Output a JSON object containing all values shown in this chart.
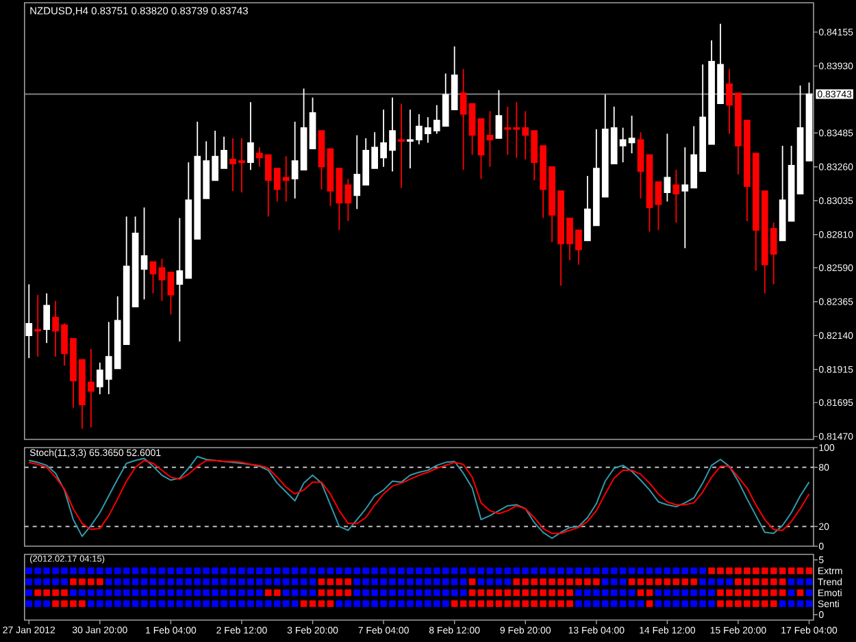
{
  "chart_data": [
    {
      "type": "candlestick",
      "title": "NZDUSD,H4 0.83751 0.83820 0.83739 0.83743",
      "categories": [
        null,
        null,
        null,
        null,
        null,
        null,
        null,
        null,
        null,
        null,
        null,
        null,
        null,
        null,
        null,
        null,
        null,
        null,
        null,
        null,
        null,
        null,
        null,
        null,
        null,
        null,
        null,
        null,
        null,
        null,
        null,
        null,
        null,
        null,
        null,
        null,
        null,
        null,
        null,
        null,
        null,
        null,
        null,
        null,
        null,
        null,
        null,
        null,
        null,
        null,
        null,
        null,
        null,
        null,
        null,
        null,
        null,
        null,
        null,
        null,
        null,
        null,
        null,
        null,
        null,
        null,
        null,
        null,
        null,
        null,
        null,
        null,
        null,
        null,
        null,
        null,
        null,
        null,
        null,
        null,
        null,
        null,
        null,
        null,
        null,
        null,
        null,
        null,
        null
      ],
      "ohlc": [
        [
          0.8214,
          0.8248,
          0.8199,
          0.8222
        ],
        [
          0.8218,
          0.8241,
          0.82,
          0.8217
        ],
        [
          0.8218,
          0.8242,
          0.8209,
          0.8234
        ],
        [
          0.8226,
          0.8237,
          0.82,
          0.8217
        ],
        [
          0.8221,
          0.8222,
          0.8194,
          0.8202
        ],
        [
          0.8212,
          0.8212,
          0.8166,
          0.8184
        ],
        [
          0.8198,
          0.8198,
          0.8152,
          0.8168
        ],
        [
          0.8183,
          0.8205,
          0.8153,
          0.8177
        ],
        [
          0.818,
          0.8196,
          0.8175,
          0.8191
        ],
        [
          0.8185,
          0.8223,
          0.8175,
          0.82
        ],
        [
          0.8192,
          0.824,
          0.8192,
          0.8224
        ],
        [
          0.8208,
          0.8293,
          0.8208,
          0.826
        ],
        [
          0.8233,
          0.8293,
          0.8233,
          0.8282
        ],
        [
          0.8258,
          0.8299,
          0.8238,
          0.8267
        ],
        [
          0.8263,
          0.8263,
          0.8242,
          0.8255
        ],
        [
          0.8259,
          0.8265,
          0.8237,
          0.8251
        ],
        [
          0.8256,
          0.8256,
          0.8228,
          0.8241
        ],
        [
          0.8248,
          0.8292,
          0.821,
          0.8257
        ],
        [
          0.8252,
          0.8329,
          0.8252,
          0.8304
        ],
        [
          0.8278,
          0.8356,
          0.8278,
          0.8333
        ],
        [
          0.8305,
          0.8343,
          0.8305,
          0.833
        ],
        [
          0.8317,
          0.835,
          0.8317,
          0.8333
        ],
        [
          0.8325,
          0.8346,
          0.8325,
          0.8337
        ],
        [
          0.8331,
          0.8345,
          0.831,
          0.8328
        ],
        [
          0.833,
          0.8345,
          0.8309,
          0.8329
        ],
        [
          0.8329,
          0.8369,
          0.8324,
          0.8342
        ],
        [
          0.8335,
          0.8339,
          0.8326,
          0.8332
        ],
        [
          0.8334,
          0.8334,
          0.8293,
          0.8317
        ],
        [
          0.8325,
          0.8325,
          0.8303,
          0.8311
        ],
        [
          0.8319,
          0.8333,
          0.8303,
          0.8317
        ],
        [
          0.8318,
          0.8356,
          0.8305,
          0.833
        ],
        [
          0.8324,
          0.8378,
          0.8324,
          0.8352
        ],
        [
          0.8338,
          0.8372,
          0.8338,
          0.8362
        ],
        [
          0.835,
          0.835,
          0.8311,
          0.8326
        ],
        [
          0.8338,
          0.8338,
          0.83,
          0.831
        ],
        [
          0.8325,
          0.8325,
          0.8284,
          0.8302
        ],
        [
          0.8314,
          0.8318,
          0.829,
          0.8302
        ],
        [
          0.8307,
          0.8347,
          0.8298,
          0.8321
        ],
        [
          0.8314,
          0.8345,
          0.8314,
          0.8337
        ],
        [
          0.8325,
          0.8349,
          0.8325,
          0.8339
        ],
        [
          0.8332,
          0.8364,
          0.8326,
          0.8342
        ],
        [
          0.8337,
          0.8372,
          0.8323,
          0.835
        ],
        [
          0.8344,
          0.8368,
          0.8312,
          0.8343
        ],
        [
          0.8343,
          0.8364,
          0.8325,
          0.8344
        ],
        [
          0.8344,
          0.8361,
          0.8341,
          0.8353
        ],
        [
          0.8348,
          0.8359,
          0.8342,
          0.8352
        ],
        [
          0.835,
          0.8367,
          0.8348,
          0.8357
        ],
        [
          0.8353,
          0.8388,
          0.8353,
          0.8374
        ],
        [
          0.8364,
          0.8406,
          0.8364,
          0.8387
        ],
        [
          0.8375,
          0.8391,
          0.8324,
          0.8361
        ],
        [
          0.8368,
          0.8368,
          0.8334,
          0.8347
        ],
        [
          0.8358,
          0.8358,
          0.8318,
          0.8334
        ],
        [
          0.8347,
          0.8363,
          0.8326,
          0.8344
        ],
        [
          0.8345,
          0.8377,
          0.8345,
          0.836
        ],
        [
          0.8352,
          0.8366,
          0.8334,
          0.8351
        ],
        [
          0.8352,
          0.8369,
          0.8332,
          0.8351
        ],
        [
          0.8352,
          0.8363,
          0.8331,
          0.8347
        ],
        [
          0.835,
          0.835,
          0.8317,
          0.8329
        ],
        [
          0.834,
          0.834,
          0.8292,
          0.8311
        ],
        [
          0.8326,
          0.8326,
          0.8276,
          0.8294
        ],
        [
          0.831,
          0.831,
          0.8247,
          0.8275
        ],
        [
          0.8292,
          0.8292,
          0.8264,
          0.8275
        ],
        [
          0.8284,
          0.8284,
          0.8261,
          0.8271
        ],
        [
          0.8277,
          0.832,
          0.8277,
          0.8298
        ],
        [
          0.8287,
          0.8351,
          0.8287,
          0.8325
        ],
        [
          0.8306,
          0.8374,
          0.8306,
          0.8351
        ],
        [
          0.8328,
          0.8366,
          0.8328,
          0.8352
        ],
        [
          0.834,
          0.8352,
          0.8329,
          0.8344
        ],
        [
          0.8342,
          0.836,
          0.8335,
          0.8345
        ],
        [
          0.8344,
          0.8349,
          0.8305,
          0.8323
        ],
        [
          0.8334,
          0.8334,
          0.8283,
          0.8299
        ],
        [
          0.8316,
          0.8316,
          0.8284,
          0.8301
        ],
        [
          0.8309,
          0.8348,
          0.8303,
          0.8319
        ],
        [
          0.8314,
          0.8324,
          0.8289,
          0.8308
        ],
        [
          0.831,
          0.8339,
          0.8272,
          0.8314
        ],
        [
          0.8312,
          0.8353,
          0.8312,
          0.8334
        ],
        [
          0.8323,
          0.8394,
          0.8323,
          0.8359
        ],
        [
          0.8341,
          0.841,
          0.8341,
          0.8396
        ],
        [
          0.8368,
          0.8421,
          0.8368,
          0.8394
        ],
        [
          0.8381,
          0.8391,
          0.8348,
          0.8367
        ],
        [
          0.8375,
          0.8375,
          0.8321,
          0.834
        ],
        [
          0.8357,
          0.8357,
          0.829,
          0.8313
        ],
        [
          0.8335,
          0.8335,
          0.8257,
          0.8284
        ],
        [
          0.831,
          0.831,
          0.8242,
          0.8261
        ],
        [
          0.8285,
          0.8289,
          0.8248,
          0.8268
        ],
        [
          0.8277,
          0.834,
          0.8277,
          0.8304
        ],
        [
          0.829,
          0.834,
          0.829,
          0.8327
        ],
        [
          0.8308,
          0.838,
          0.8308,
          0.8352
        ],
        [
          0.833,
          0.8382,
          0.833,
          0.83743
        ]
      ],
      "colors": [
        "#ffffff",
        "#ff0000",
        "#ffffff",
        "#ff0000",
        "#ff0000",
        "#ff0000",
        "#ff0000",
        "#ff0000",
        "#ffffff",
        "#ffffff",
        "#ffffff",
        "#ffffff",
        "#ffffff",
        "#ffffff",
        "#ff0000",
        "#ff0000",
        "#ff0000",
        "#ffffff",
        "#ffffff",
        "#ffffff",
        "#ffffff",
        "#ffffff",
        "#ffffff",
        "#ff0000",
        "#ff0000",
        "#ffffff",
        "#ff0000",
        "#ff0000",
        "#ff0000",
        "#ff0000",
        "#ffffff",
        "#ffffff",
        "#ffffff",
        "#ff0000",
        "#ff0000",
        "#ff0000",
        "#ff0000",
        "#ffffff",
        "#ffffff",
        "#ffffff",
        "#ffffff",
        "#ffffff",
        "#ff0000",
        "#ffffff",
        "#ffffff",
        "#ffffff",
        "#ffffff",
        "#ffffff",
        "#ffffff",
        "#ff0000",
        "#ff0000",
        "#ff0000",
        "#ff0000",
        "#ffffff",
        "#ff0000",
        "#ff0000",
        "#ff0000",
        "#ff0000",
        "#ff0000",
        "#ff0000",
        "#ff0000",
        "#ff0000",
        "#ff0000",
        "#ffffff",
        "#ffffff",
        "#ffffff",
        "#ffffff",
        "#ffffff",
        "#ffffff",
        "#ff0000",
        "#ff0000",
        "#ff0000",
        "#ffffff",
        "#ff0000",
        "#ffffff",
        "#ffffff",
        "#ffffff",
        "#ffffff",
        "#ffffff",
        "#ff0000",
        "#ff0000",
        "#ff0000",
        "#ff0000",
        "#ff0000",
        "#ff0000",
        "#ffffff",
        "#ffffff",
        "#ffffff",
        "#ffffff"
      ],
      "ylim": [
        0.8145,
        0.8435
      ],
      "yticks": [
        0.84155,
        {
          "value": 0.8393,
          "label": "0.83930"
        },
        0.83485,
        {
          "value": 0.8326,
          "label": "0.83260"
        },
        0.83035,
        {
          "value": 0.8281,
          "label": "0.82810"
        },
        {
          "value": 0.8259,
          "label": "0.82590"
        },
        0.82365,
        {
          "value": 0.8214,
          "label": "0.82140"
        },
        0.81915,
        0.81695,
        {
          "value": 0.8147,
          "label": "0.81470"
        }
      ],
      "ref_lines": [
        {
          "axis": "y",
          "value": 0.83743,
          "label": "0.83743",
          "color": "#808080"
        }
      ]
    },
    {
      "type": "line",
      "title": "Stoch(11,3,3) 65.3650 52.6001",
      "categories": [
        null,
        null,
        null,
        null,
        null,
        null,
        null,
        null,
        null,
        null,
        null,
        null,
        null,
        null,
        null,
        null,
        null,
        null,
        null,
        null,
        null,
        null,
        null,
        null,
        null,
        null,
        null,
        null,
        null,
        null,
        null,
        null,
        null,
        null,
        null,
        null,
        null,
        null,
        null,
        null,
        null,
        null,
        null,
        null,
        null,
        null,
        null,
        null,
        null,
        null,
        null,
        null,
        null,
        null,
        null,
        null,
        null,
        null,
        null,
        null,
        null,
        null,
        null,
        null,
        null,
        null,
        null,
        null,
        null,
        null,
        null,
        null,
        null,
        null,
        null,
        null,
        null,
        null,
        null,
        null,
        null,
        null,
        null,
        null,
        null,
        null,
        null,
        null,
        null
      ],
      "series": [
        {
          "color": "#3399aa",
          "values": [
            87,
            85,
            82,
            74,
            57,
            27,
            10,
            21,
            34,
            51,
            68,
            84,
            87,
            89,
            81,
            72,
            67,
            69,
            79,
            91,
            88,
            87,
            86,
            85,
            84,
            83,
            81,
            77,
            64,
            55,
            46,
            64,
            72,
            64,
            42,
            20,
            16,
            27,
            38,
            51,
            57,
            66,
            65,
            72,
            75,
            77,
            82,
            85,
            86,
            74,
            59,
            27,
            31,
            36,
            41,
            42,
            38,
            24,
            14,
            8,
            14,
            19,
            20,
            29,
            43,
            66,
            79,
            82,
            76,
            67,
            57,
            45,
            42,
            40,
            44,
            49,
            64,
            82,
            88,
            81,
            66,
            48,
            31,
            14,
            13,
            21,
            34,
            51,
            65
          ]
        },
        {
          "color": "#ff0000",
          "values": [
            85,
            83,
            80,
            70,
            58,
            38,
            23,
            17,
            18,
            31,
            48,
            66,
            80,
            87,
            84,
            77,
            70,
            68,
            73,
            81,
            87,
            87,
            86,
            86,
            85,
            83,
            82,
            79,
            70,
            60,
            53,
            57,
            65,
            65,
            53,
            36,
            23,
            23,
            29,
            42,
            53,
            61,
            64,
            68,
            72,
            75,
            79,
            82,
            85,
            83,
            70,
            44,
            36,
            33,
            36,
            41,
            38,
            29,
            18,
            13,
            13,
            16,
            19,
            25,
            36,
            53,
            69,
            77,
            77,
            73,
            64,
            53,
            45,
            42,
            42,
            44,
            55,
            70,
            81,
            81,
            70,
            59,
            42,
            27,
            17,
            16,
            25,
            38,
            53
          ]
        }
      ],
      "ylim": [
        0,
        100
      ],
      "yticks": [
        100,
        80,
        20,
        0
      ],
      "ref_lines": [
        {
          "axis": "y",
          "value": 80,
          "line_style": "dashed",
          "color": "#c0c0c0"
        },
        {
          "axis": "y",
          "value": 20,
          "line_style": "dashed",
          "color": "#c0c0c0"
        }
      ]
    },
    {
      "type": "scatter",
      "title": "(2012.02.17 04:15)",
      "marker": "square",
      "categories": [
        "27 Jan 2012",
        null,
        null,
        null,
        null,
        null,
        null,
        null,
        "30 Jan 20:00",
        null,
        null,
        null,
        null,
        null,
        null,
        null,
        "1 Feb 04:00",
        null,
        null,
        null,
        null,
        null,
        null,
        null,
        "2 Feb 12:00",
        null,
        null,
        null,
        null,
        null,
        null,
        null,
        "3 Feb 20:00",
        null,
        null,
        null,
        null,
        null,
        null,
        null,
        "7 Feb 04:00",
        null,
        null,
        null,
        null,
        null,
        null,
        null,
        "8 Feb 12:00",
        null,
        null,
        null,
        null,
        null,
        null,
        null,
        "9 Feb 20:00",
        null,
        null,
        null,
        null,
        null,
        null,
        null,
        "13 Feb 04:00",
        null,
        null,
        null,
        null,
        null,
        null,
        null,
        "14 Feb 12:00",
        null,
        null,
        null,
        null,
        null,
        null,
        null,
        "15 Feb 20:00",
        null,
        null,
        null,
        null,
        null,
        null,
        null,
        "17 Feb 04:00"
      ],
      "series": [
        {
          "name": "Extrm",
          "values": [
            4,
            4,
            4,
            4,
            4,
            4,
            4,
            4,
            4,
            4,
            4,
            4,
            4,
            4,
            4,
            4,
            4,
            4,
            4,
            4,
            4,
            4,
            4,
            4,
            4,
            4,
            4,
            4,
            4,
            4,
            4,
            4,
            4,
            4,
            4,
            4,
            4,
            4,
            4,
            4,
            4,
            4,
            4,
            4,
            4,
            4,
            4,
            4,
            4,
            4,
            4,
            4,
            4,
            4,
            4,
            4,
            4,
            4,
            4,
            4,
            4,
            4,
            4,
            4,
            4,
            4,
            4,
            4,
            4,
            4,
            4,
            4,
            4,
            4,
            4,
            4,
            4,
            4,
            4,
            4,
            4,
            4,
            4,
            4,
            4,
            4,
            4,
            4,
            4
          ],
          "colors": [
            "#0000ff",
            "#0000ff",
            "#0000ff",
            "#0000ff",
            "#0000ff",
            "#0000ff",
            "#0000ff",
            "#0000ff",
            "#0000ff",
            "#0000ff",
            "#0000ff",
            "#0000ff",
            "#0000ff",
            "#0000ff",
            "#0000ff",
            "#0000ff",
            "#0000ff",
            "#0000ff",
            "#0000ff",
            "#0000ff",
            "#0000ff",
            "#0000ff",
            "#0000ff",
            "#0000ff",
            "#0000ff",
            "#0000ff",
            "#0000ff",
            "#0000ff",
            "#0000ff",
            "#0000ff",
            "#0000ff",
            "#0000ff",
            "#0000ff",
            "#0000ff",
            "#0000ff",
            "#0000ff",
            "#0000ff",
            "#0000ff",
            "#0000ff",
            "#0000ff",
            "#0000ff",
            "#0000ff",
            "#0000ff",
            "#0000ff",
            "#0000ff",
            "#0000ff",
            "#0000ff",
            "#0000ff",
            "#0000ff",
            "#0000ff",
            "#0000ff",
            "#0000ff",
            "#0000ff",
            "#0000ff",
            "#0000ff",
            "#0000ff",
            "#0000ff",
            "#0000ff",
            "#0000ff",
            "#0000ff",
            "#0000ff",
            "#0000ff",
            "#0000ff",
            "#0000ff",
            "#0000ff",
            "#0000ff",
            "#0000ff",
            "#0000ff",
            "#0000ff",
            "#0000ff",
            "#0000ff",
            "#0000ff",
            "#0000ff",
            "#0000ff",
            "#0000ff",
            "#0000ff",
            "#0000ff",
            "#ff0000",
            "#ff0000",
            "#ff0000",
            "#ff0000",
            "#ff0000",
            "#ff0000",
            "#ff0000",
            "#ff0000",
            "#ff0000",
            "#ff0000",
            "#ff0000",
            "#ff0000"
          ]
        },
        {
          "name": "Trend",
          "values": [
            3,
            3,
            3,
            3,
            3,
            3,
            3,
            3,
            3,
            3,
            3,
            3,
            3,
            3,
            3,
            3,
            3,
            3,
            3,
            3,
            3,
            3,
            3,
            3,
            3,
            3,
            3,
            3,
            3,
            3,
            3,
            3,
            3,
            3,
            3,
            3,
            3,
            3,
            3,
            3,
            3,
            3,
            3,
            3,
            3,
            3,
            3,
            3,
            3,
            3,
            3,
            3,
            3,
            3,
            3,
            3,
            3,
            3,
            3,
            3,
            3,
            3,
            3,
            3,
            3,
            3,
            3,
            3,
            3,
            3,
            3,
            3,
            3,
            3,
            3,
            3,
            3,
            3,
            3,
            3,
            3,
            3,
            3,
            3,
            3,
            3,
            3,
            3,
            3
          ],
          "colors": [
            "#0000ff",
            "#0000ff",
            "#0000ff",
            "#0000ff",
            "#0000ff",
            "#ff0000",
            "#ff0000",
            "#ff0000",
            "#ff0000",
            "#0000ff",
            "#0000ff",
            "#0000ff",
            "#0000ff",
            "#0000ff",
            "#0000ff",
            "#0000ff",
            "#0000ff",
            "#0000ff",
            "#0000ff",
            "#0000ff",
            "#0000ff",
            "#0000ff",
            "#0000ff",
            "#0000ff",
            "#0000ff",
            "#0000ff",
            "#0000ff",
            "#0000ff",
            "#0000ff",
            "#0000ff",
            "#0000ff",
            "#0000ff",
            "#0000ff",
            "#ff0000",
            "#ff0000",
            "#ff0000",
            "#ff0000",
            "#0000ff",
            "#0000ff",
            "#0000ff",
            "#0000ff",
            "#0000ff",
            "#0000ff",
            "#0000ff",
            "#0000ff",
            "#0000ff",
            "#0000ff",
            "#0000ff",
            "#0000ff",
            "#0000ff",
            "#ff0000",
            "#0000ff",
            "#0000ff",
            "#0000ff",
            "#0000ff",
            "#ff0000",
            "#ff0000",
            "#ff0000",
            "#ff0000",
            "#ff0000",
            "#ff0000",
            "#ff0000",
            "#ff0000",
            "#ff0000",
            "#ff0000",
            "#0000ff",
            "#0000ff",
            "#0000ff",
            "#ff0000",
            "#ff0000",
            "#ff0000",
            "#ff0000",
            "#ff0000",
            "#ff0000",
            "#ff0000",
            "#ff0000",
            "#0000ff",
            "#0000ff",
            "#0000ff",
            "#0000ff",
            "#ff0000",
            "#ff0000",
            "#ff0000",
            "#ff0000",
            "#ff0000",
            "#ff0000",
            "#0000ff",
            "#0000ff",
            "#0000ff"
          ]
        },
        {
          "name": "Emoti",
          "values": [
            2,
            2,
            2,
            2,
            2,
            2,
            2,
            2,
            2,
            2,
            2,
            2,
            2,
            2,
            2,
            2,
            2,
            2,
            2,
            2,
            2,
            2,
            2,
            2,
            2,
            2,
            2,
            2,
            2,
            2,
            2,
            2,
            2,
            2,
            2,
            2,
            2,
            2,
            2,
            2,
            2,
            2,
            2,
            2,
            2,
            2,
            2,
            2,
            2,
            2,
            2,
            2,
            2,
            2,
            2,
            2,
            2,
            2,
            2,
            2,
            2,
            2,
            2,
            2,
            2,
            2,
            2,
            2,
            2,
            2,
            2,
            2,
            2,
            2,
            2,
            2,
            2,
            2,
            2,
            2,
            2,
            2,
            2,
            2,
            2,
            2,
            2,
            2,
            2
          ],
          "colors": [
            "#0000ff",
            "#ff0000",
            "#ff0000",
            "#ff0000",
            "#ff0000",
            "#0000ff",
            "#0000ff",
            "#0000ff",
            "#0000ff",
            "#0000ff",
            "#0000ff",
            "#0000ff",
            "#0000ff",
            "#0000ff",
            "#0000ff",
            "#0000ff",
            "#0000ff",
            "#0000ff",
            "#0000ff",
            "#0000ff",
            "#0000ff",
            "#0000ff",
            "#0000ff",
            "#0000ff",
            "#0000ff",
            "#0000ff",
            "#0000ff",
            "#ff0000",
            "#ff0000",
            "#0000ff",
            "#0000ff",
            "#0000ff",
            "#0000ff",
            "#ff0000",
            "#ff0000",
            "#ff0000",
            "#ff0000",
            "#0000ff",
            "#0000ff",
            "#0000ff",
            "#0000ff",
            "#0000ff",
            "#0000ff",
            "#0000ff",
            "#0000ff",
            "#0000ff",
            "#0000ff",
            "#0000ff",
            "#0000ff",
            "#0000ff",
            "#ff0000",
            "#ff0000",
            "#ff0000",
            "#ff0000",
            "#ff0000",
            "#ff0000",
            "#ff0000",
            "#ff0000",
            "#ff0000",
            "#ff0000",
            "#ff0000",
            "#ff0000",
            "#0000ff",
            "#0000ff",
            "#0000ff",
            "#0000ff",
            "#0000ff",
            "#0000ff",
            "#0000ff",
            "#ff0000",
            "#ff0000",
            "#0000ff",
            "#0000ff",
            "#0000ff",
            "#0000ff",
            "#0000ff",
            "#0000ff",
            "#0000ff",
            "#ff0000",
            "#ff0000",
            "#ff0000",
            "#ff0000",
            "#ff0000",
            "#ff0000",
            "#ff0000",
            "#ff0000",
            "#0000ff",
            "#ff0000",
            "#0000ff"
          ]
        },
        {
          "name": "Senti",
          "values": [
            1,
            1,
            1,
            1,
            1,
            1,
            1,
            1,
            1,
            1,
            1,
            1,
            1,
            1,
            1,
            1,
            1,
            1,
            1,
            1,
            1,
            1,
            1,
            1,
            1,
            1,
            1,
            1,
            1,
            1,
            1,
            1,
            1,
            1,
            1,
            1,
            1,
            1,
            1,
            1,
            1,
            1,
            1,
            1,
            1,
            1,
            1,
            1,
            1,
            1,
            1,
            1,
            1,
            1,
            1,
            1,
            1,
            1,
            1,
            1,
            1,
            1,
            1,
            1,
            1,
            1,
            1,
            1,
            1,
            1,
            1,
            1,
            1,
            1,
            1,
            1,
            1,
            1,
            1,
            1,
            1,
            1,
            1,
            1,
            1,
            1,
            1,
            1,
            1
          ],
          "colors": [
            "#0000ff",
            "#0000ff",
            "#0000ff",
            "#ff0000",
            "#ff0000",
            "#ff0000",
            "#ff0000",
            "#0000ff",
            "#0000ff",
            "#0000ff",
            "#0000ff",
            "#0000ff",
            "#0000ff",
            "#0000ff",
            "#0000ff",
            "#0000ff",
            "#0000ff",
            "#0000ff",
            "#0000ff",
            "#0000ff",
            "#0000ff",
            "#0000ff",
            "#0000ff",
            "#0000ff",
            "#0000ff",
            "#0000ff",
            "#0000ff",
            "#0000ff",
            "#0000ff",
            "#0000ff",
            "#0000ff",
            "#ff0000",
            "#ff0000",
            "#ff0000",
            "#ff0000",
            "#0000ff",
            "#0000ff",
            "#0000ff",
            "#0000ff",
            "#0000ff",
            "#0000ff",
            "#0000ff",
            "#0000ff",
            "#0000ff",
            "#0000ff",
            "#0000ff",
            "#0000ff",
            "#0000ff",
            "#ff0000",
            "#ff0000",
            "#ff0000",
            "#ff0000",
            "#ff0000",
            "#ff0000",
            "#ff0000",
            "#ff0000",
            "#ff0000",
            "#ff0000",
            "#ff0000",
            "#ff0000",
            "#ff0000",
            "#ff0000",
            "#0000ff",
            "#0000ff",
            "#0000ff",
            "#0000ff",
            "#0000ff",
            "#0000ff",
            "#0000ff",
            "#0000ff",
            "#ff0000",
            "#0000ff",
            "#0000ff",
            "#0000ff",
            "#0000ff",
            "#0000ff",
            "#0000ff",
            "#0000ff",
            "#ff0000",
            "#ff0000",
            "#ff0000",
            "#ff0000",
            "#ff0000",
            "#ff0000",
            "#ff0000",
            "#0000ff",
            "#0000ff",
            "#0000ff",
            "#0000ff"
          ]
        }
      ],
      "ylim": [
        -0.5,
        5.5
      ],
      "yticks": [
        5,
        0
      ]
    }
  ]
}
